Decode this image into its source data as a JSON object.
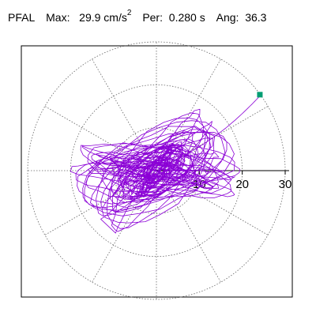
{
  "header": {
    "station": "PFAL",
    "max_label": "Max:",
    "max_value": "29.9 cm/s",
    "max_exp": "2",
    "per_label": "Per:",
    "per_value": "0.280 s",
    "ang_label": "Ang:",
    "ang_value": "36.3"
  },
  "chart_data": {
    "type": "polar-orbit",
    "radial_ticks": [
      "10",
      "20",
      "30"
    ],
    "radial_tick_values": [
      10,
      20,
      30
    ],
    "r_max": 30,
    "max_amplitude": 29.9,
    "max_angle_deg": 36.3,
    "grid": true,
    "spoke_step_deg": 30,
    "trace_color": "#8b00d6",
    "marker_color": "#009e73",
    "grid_color": "#666666"
  }
}
